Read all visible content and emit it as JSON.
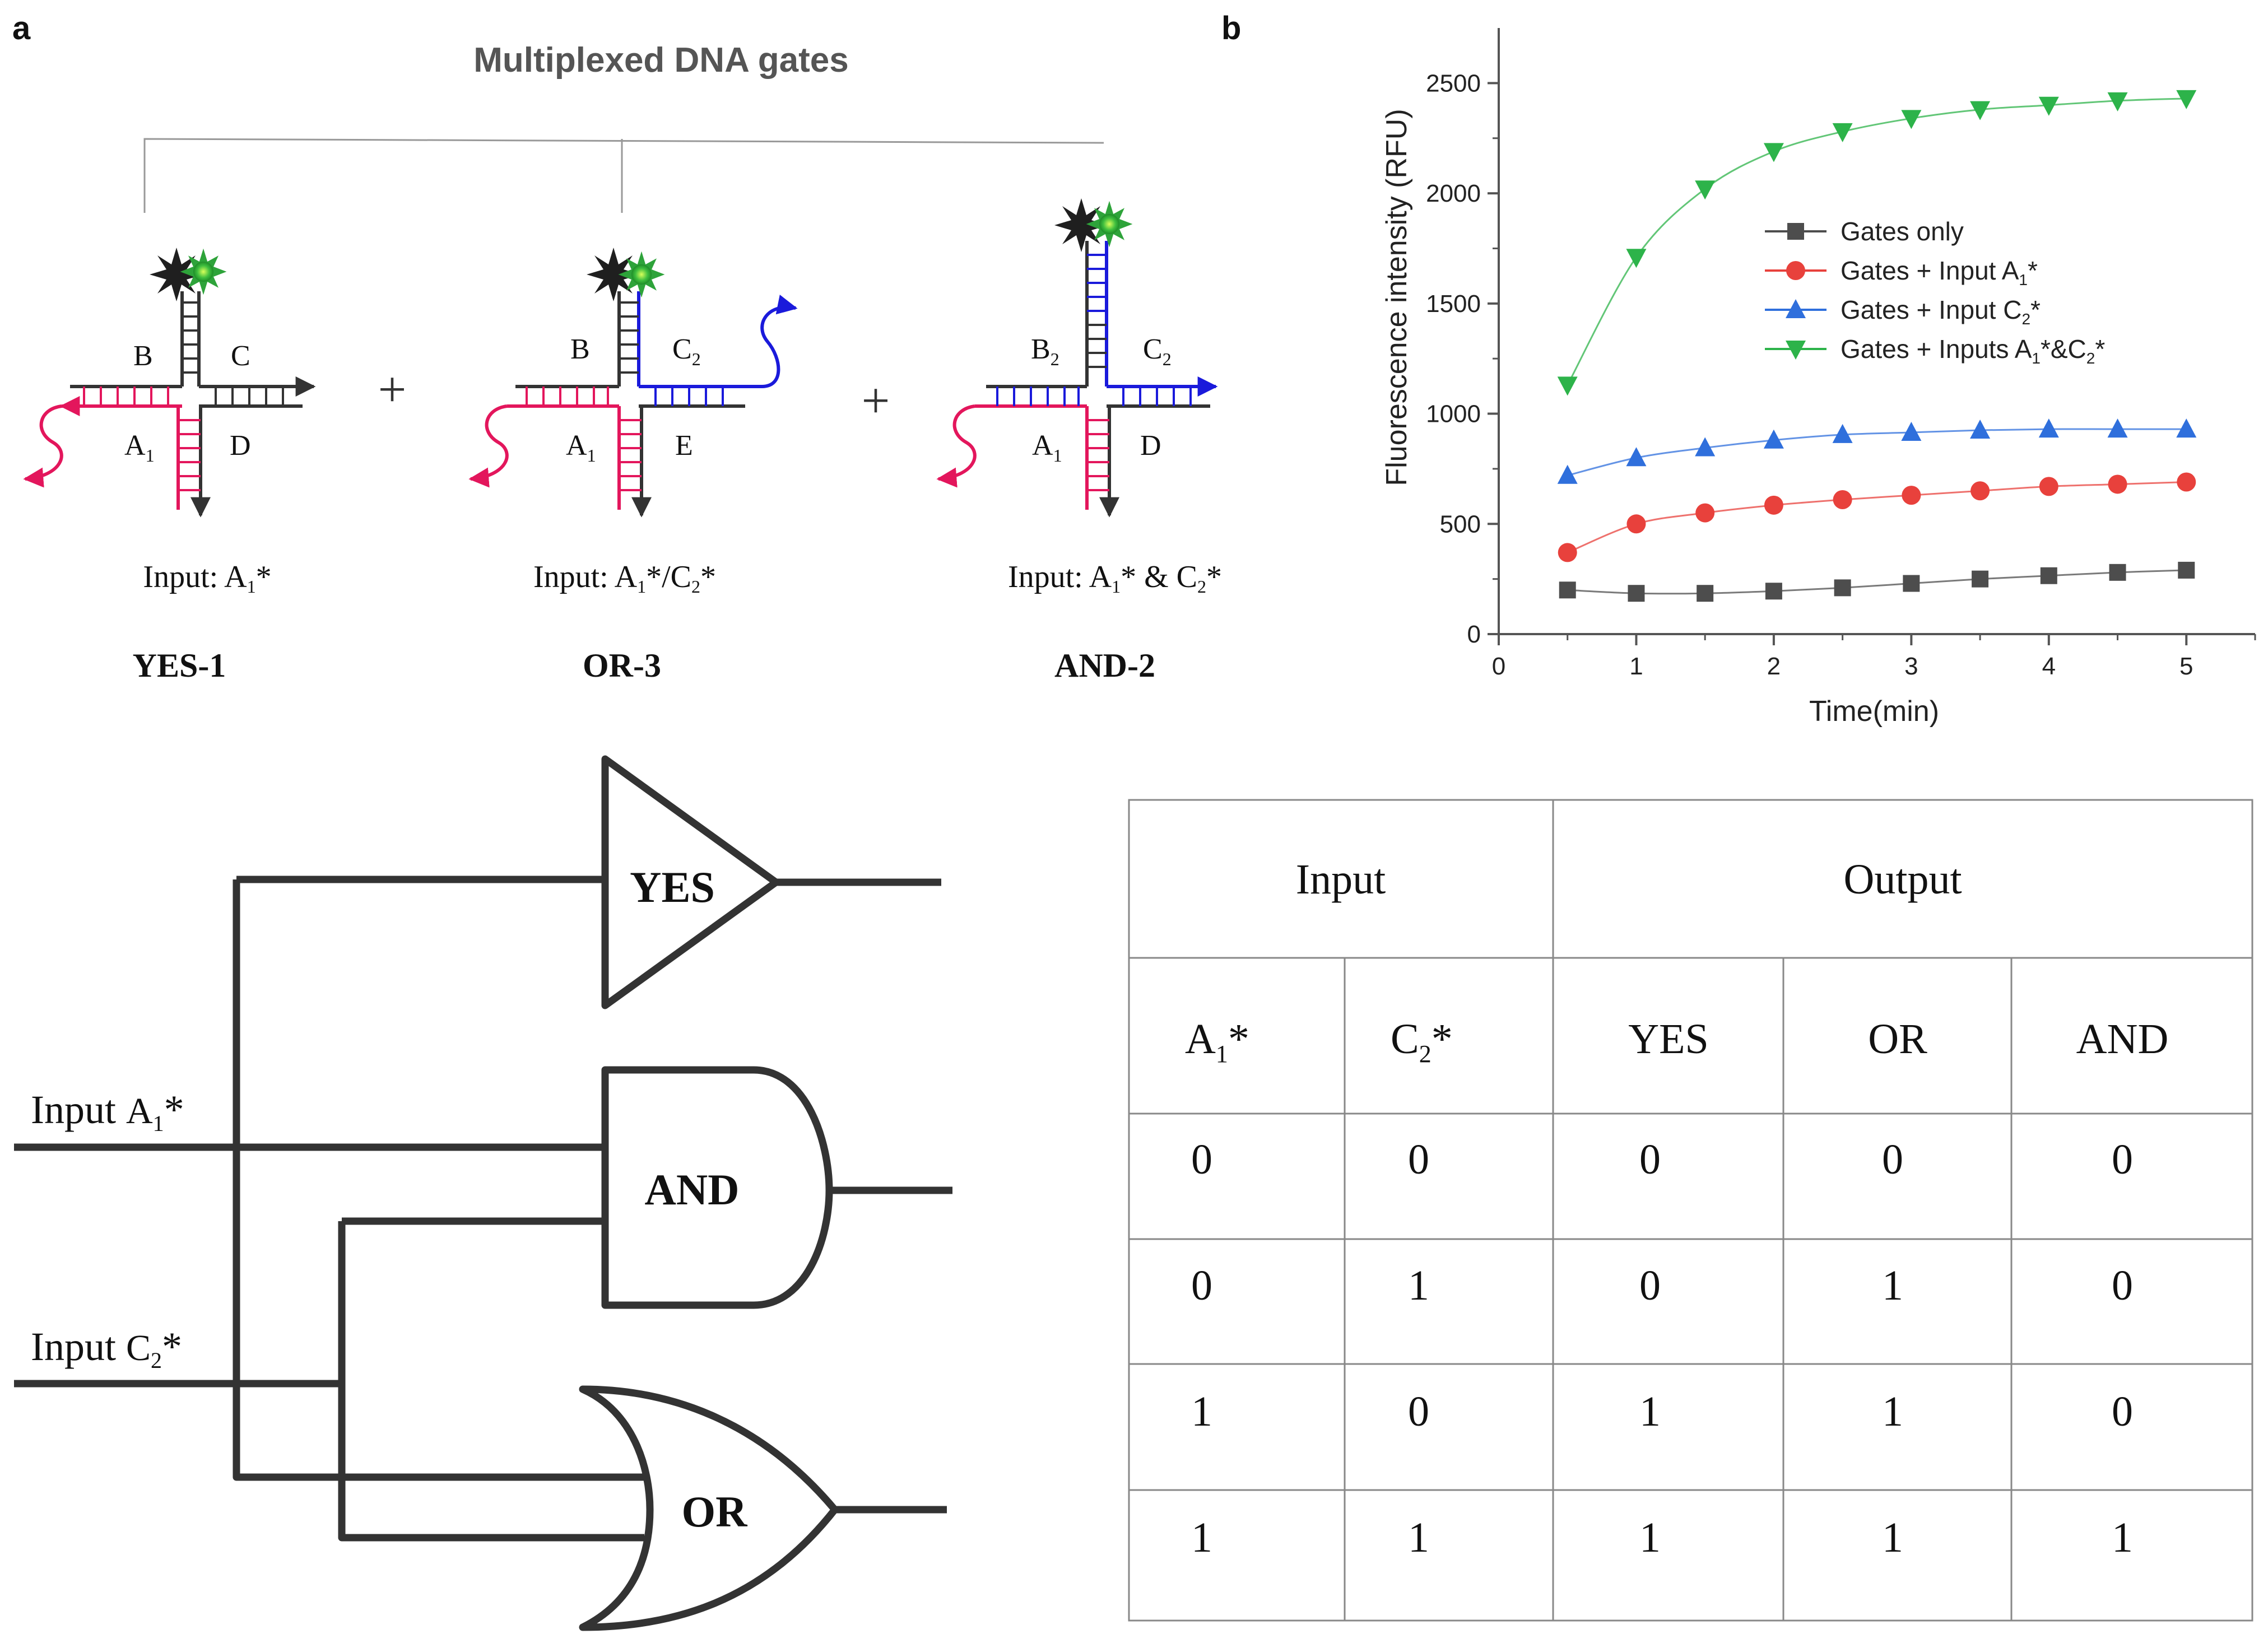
{
  "panel_a": {
    "letter": "a",
    "title": "Multiplexed DNA gates",
    "plus": "+",
    "sub1": "1",
    "sub2": "2",
    "star": "*",
    "gates": [
      {
        "name": "YES-1",
        "input_prefix": "Input: ",
        "arms": {
          "top_left": "B",
          "top_right": "C",
          "bottom_left": "A",
          "bottom_right": "D"
        }
      },
      {
        "name": "OR-3",
        "input_prefix": "Input: ",
        "input_sep": "/",
        "arms": {
          "top_left": "B",
          "top_right": "C",
          "bottom_left": "A",
          "bottom_right": "E"
        }
      },
      {
        "name": "AND-2",
        "input_prefix": "Input: ",
        "input_sep": " & ",
        "arms": {
          "top_left": "B",
          "top_right": "C",
          "bottom_left": "A",
          "bottom_right": "D"
        }
      }
    ]
  },
  "panel_b": {
    "letter": "b"
  },
  "chart_data": {
    "type": "line",
    "title": "",
    "xlabel": "Time(min)",
    "ylabel": "Fluorescence intensity (RFU)",
    "xlim": [
      0,
      5.5
    ],
    "ylim": [
      0,
      2750
    ],
    "xticks": [
      0,
      1,
      2,
      3,
      4,
      5
    ],
    "yticks": [
      0,
      500,
      1000,
      1500,
      2000,
      2500
    ],
    "x": [
      0.5,
      1,
      1.5,
      2,
      2.5,
      3,
      3.5,
      4,
      4.5,
      5
    ],
    "series": [
      {
        "name": "Gates only",
        "marker": "square",
        "color": "#4d4d4d",
        "values": [
          200,
          185,
          185,
          195,
          210,
          230,
          250,
          265,
          280,
          290
        ]
      },
      {
        "name": "Gates + Input A1*",
        "legend_base": "Gates + Input A",
        "legend_sub": "1",
        "legend_tail": "*",
        "marker": "circle",
        "color": "#e8413c",
        "values": [
          370,
          500,
          550,
          585,
          610,
          630,
          650,
          670,
          680,
          690
        ]
      },
      {
        "name": "Gates + Input C2*",
        "legend_base": "Gates + Input C",
        "legend_sub": "2",
        "legend_tail": "*",
        "marker": "triangle-up",
        "color": "#2f6fdc",
        "values": [
          720,
          800,
          845,
          880,
          905,
          915,
          925,
          930,
          930,
          930
        ]
      },
      {
        "name": "Gates + Inputs A1*&C2*",
        "legend_base": "Gates + Inputs A",
        "legend_sub": "1",
        "legend_mid": "*&C",
        "legend_sub2": "2",
        "legend_tail": "*",
        "marker": "triangle-down",
        "color": "#2db34a",
        "values": [
          1130,
          1710,
          2020,
          2190,
          2280,
          2340,
          2380,
          2400,
          2420,
          2430
        ]
      }
    ],
    "legend_position": "center-right"
  },
  "logic_circuit": {
    "input_a_prefix": "Input ",
    "input_a_letter": "A",
    "input_c_prefix": "Input ",
    "input_c_letter": "C",
    "gates": [
      "YES",
      "AND",
      "OR"
    ]
  },
  "truth_table": {
    "group_headers": [
      "Input",
      "Output"
    ],
    "columns": [
      "A1*",
      "C2*",
      "YES",
      "OR",
      "AND"
    ],
    "rows": [
      [
        "0",
        "0",
        "0",
        "0",
        "0"
      ],
      [
        "0",
        "1",
        "0",
        "1",
        "0"
      ],
      [
        "1",
        "0",
        "1",
        "1",
        "0"
      ],
      [
        "1",
        "1",
        "1",
        "1",
        "1"
      ]
    ]
  }
}
